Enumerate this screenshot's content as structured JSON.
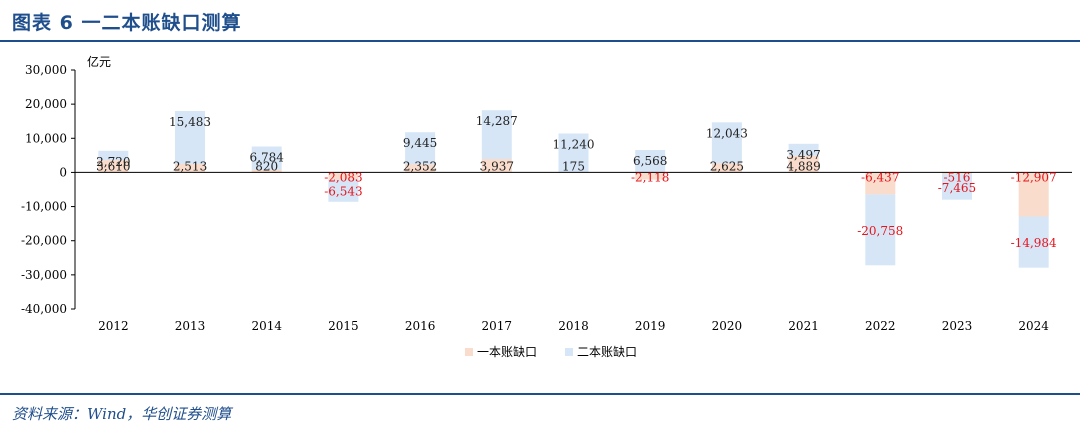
{
  "header": {
    "title": "图表 6    一二本账缺口测算"
  },
  "footer": {
    "source": "资料来源：Wind，华创证券测算"
  },
  "colors": {
    "series1": "#f9dccb",
    "series2": "#d6e6f7",
    "negative_label": "#e8141c",
    "label": "#222222",
    "brand": "#1f4e8c"
  },
  "chart_data": {
    "type": "bar",
    "stacked": true,
    "unit_label": "亿元",
    "categories": [
      "2012",
      "2013",
      "2014",
      "2015",
      "2016",
      "2017",
      "2018",
      "2019",
      "2020",
      "2021",
      "2022",
      "2023",
      "2024"
    ],
    "series": [
      {
        "name": "一本账缺口",
        "values": [
          3610,
          2513,
          820,
          -2083,
          2352,
          3937,
          175,
          -2118,
          2625,
          4889,
          -6437,
          -516,
          -12907
        ],
        "labels": [
          "3,610",
          "2,513",
          "820",
          "-2,083",
          "2,352",
          "3,937",
          "175",
          "-2,118",
          "2,625",
          "4,889",
          "-6,437",
          "-516",
          "-12,907"
        ]
      },
      {
        "name": "二本账缺口",
        "values": [
          2720,
          15483,
          6784,
          -6543,
          9445,
          14287,
          11240,
          6568,
          12043,
          3497,
          -20758,
          -7465,
          -14984
        ],
        "labels": [
          "2,720",
          "15,483",
          "6,784",
          "-6,543",
          "9,445",
          "14,287",
          "11,240",
          "6,568",
          "12,043",
          "3,497",
          "-20,758",
          "-7,465",
          "-14,984"
        ]
      }
    ],
    "ylim": [
      -40000,
      30000
    ],
    "yticks": [
      30000,
      20000,
      10000,
      0,
      -10000,
      -20000,
      -30000,
      -40000
    ],
    "ytick_labels": [
      "30,000",
      "20,000",
      "10,000",
      "0",
      "-10,000",
      "-20,000",
      "-30,000",
      "-40,000"
    ],
    "grid": false,
    "legend": "bottom-center"
  }
}
